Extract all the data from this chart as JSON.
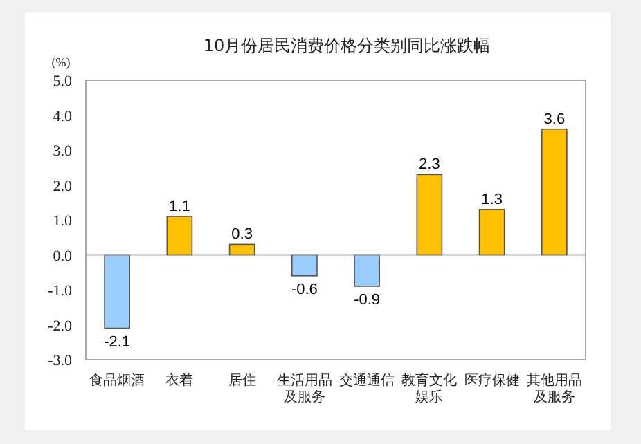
{
  "chart_data": {
    "type": "bar",
    "title": "10月份居民消费价格分类别同比涨跌幅",
    "ylabel": "(%)",
    "categories": [
      "食品烟酒",
      "衣着",
      "居住",
      "生活用品及服务",
      "交通通信",
      "教育文化娱乐",
      "医疗保健",
      "其他用品及服务"
    ],
    "values": [
      -2.1,
      1.1,
      0.3,
      -0.6,
      -0.9,
      2.3,
      1.3,
      3.6
    ],
    "colors": [
      "#99ccff",
      "#ffc000",
      "#ffc000",
      "#99ccff",
      "#99ccff",
      "#ffc000",
      "#ffc000",
      "#ffc000"
    ],
    "ylim": [
      -3,
      5
    ],
    "yticks": [
      {
        "value": -3,
        "label": "-3.0"
      },
      {
        "value": -2,
        "label": "-2.0"
      },
      {
        "value": -1,
        "label": "-1.0"
      },
      {
        "value": 0,
        "label": "0.0"
      },
      {
        "value": 1,
        "label": "1.0"
      },
      {
        "value": 2,
        "label": "2.0"
      },
      {
        "value": 3,
        "label": "3.0"
      },
      {
        "value": 4,
        "label": "4.0"
      },
      {
        "value": 5,
        "label": "5.0"
      }
    ],
    "data_labels": true
  }
}
